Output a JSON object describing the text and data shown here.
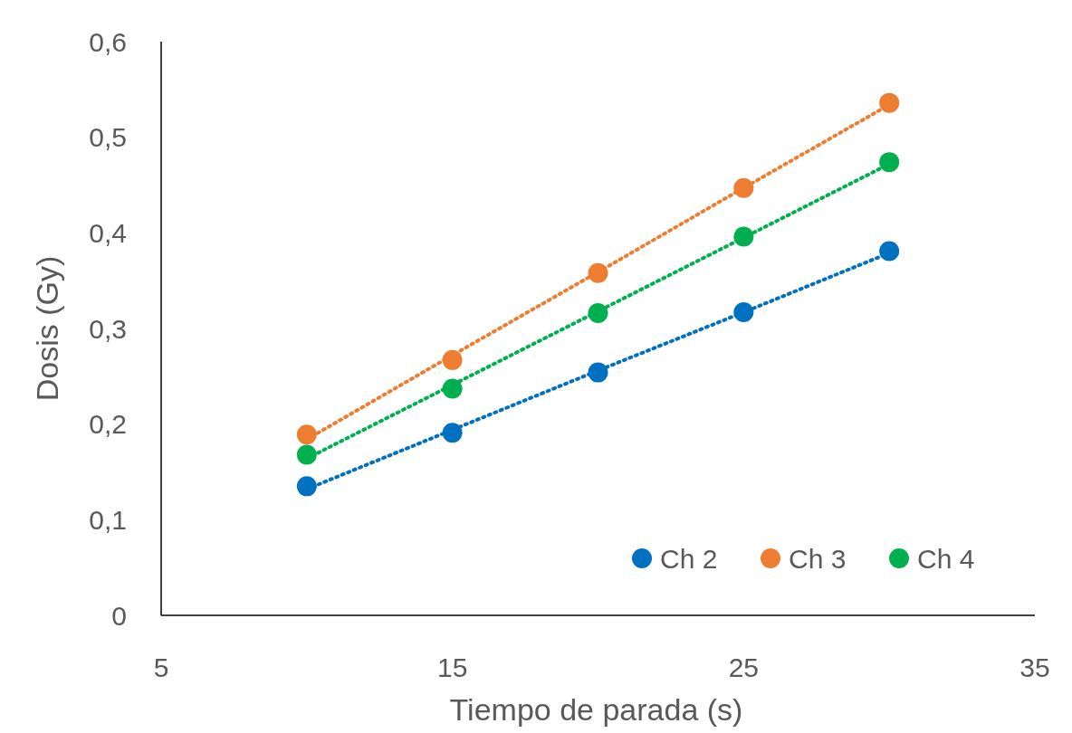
{
  "chart_data": {
    "type": "scatter",
    "xlabel": "Tiempo de parada (s)",
    "ylabel": "Dosis (Gy)",
    "xlim": [
      5,
      35
    ],
    "xticks": [
      5,
      15,
      25,
      35
    ],
    "ylim": [
      0,
      0.6
    ],
    "yticks": [
      {
        "value": 0,
        "label": "0"
      },
      {
        "value": 0.1,
        "label": "0,1"
      },
      {
        "value": 0.2,
        "label": "0,2"
      },
      {
        "value": 0.3,
        "label": "0,3"
      },
      {
        "value": 0.4,
        "label": "0,4"
      },
      {
        "value": 0.5,
        "label": "0,5"
      },
      {
        "value": 0.6,
        "label": "0,6"
      }
    ],
    "grid": false,
    "legend": "bottom right",
    "marker": "circle",
    "x": [
      10,
      15,
      20,
      25,
      30
    ],
    "series": [
      {
        "name": "Ch 2",
        "color": "#0070c0",
        "values": [
          0.135,
          0.191,
          0.254,
          0.317,
          0.381
        ]
      },
      {
        "name": "Ch 3",
        "color": "#ed7d31",
        "values": [
          0.189,
          0.267,
          0.358,
          0.447,
          0.536
        ]
      },
      {
        "name": "Ch 4",
        "color": "#00b050",
        "values": [
          0.168,
          0.237,
          0.316,
          0.396,
          0.474
        ]
      },
      {
        "type": "line",
        "marker": "none",
        "line_style": "dotted",
        "color": "#0070c0",
        "values": [
          0.132,
          0.194,
          0.256,
          0.317,
          0.379
        ]
      },
      {
        "type": "line",
        "marker": "none",
        "line_style": "dotted",
        "color": "#ed7d31",
        "values": [
          0.184,
          0.272,
          0.359,
          0.447,
          0.534
        ]
      },
      {
        "type": "line",
        "marker": "none",
        "line_style": "dotted",
        "color": "#00b050",
        "values": [
          0.164,
          0.241,
          0.318,
          0.395,
          0.472
        ]
      }
    ]
  }
}
